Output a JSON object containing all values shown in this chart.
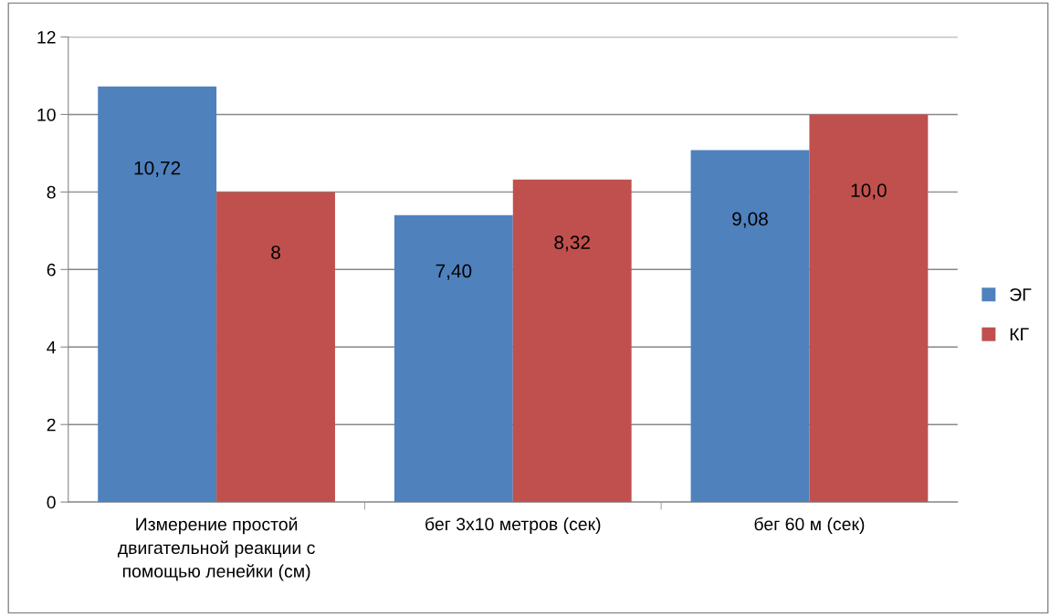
{
  "chart_data": {
    "type": "bar",
    "categories": [
      "Измерение простой\nдвигательной реакции с\nпомощью ленейки (см)",
      "бег 3x10 метров (сек)",
      "бег 60 м (сек)"
    ],
    "series": [
      {
        "name": "ЭГ",
        "color": "#4f81bd",
        "values": [
          10.72,
          7.4,
          9.08
        ],
        "value_labels": [
          "10,72",
          "7,40",
          "9,08"
        ]
      },
      {
        "name": "КГ",
        "color": "#c0504d",
        "values": [
          8,
          8.32,
          10.0
        ],
        "value_labels": [
          "8",
          "8,32",
          "10,0"
        ]
      }
    ],
    "ylim": [
      0,
      12
    ],
    "yticks": [
      0,
      2,
      4,
      6,
      8,
      10,
      12
    ],
    "grid": "y",
    "legend": "right"
  }
}
